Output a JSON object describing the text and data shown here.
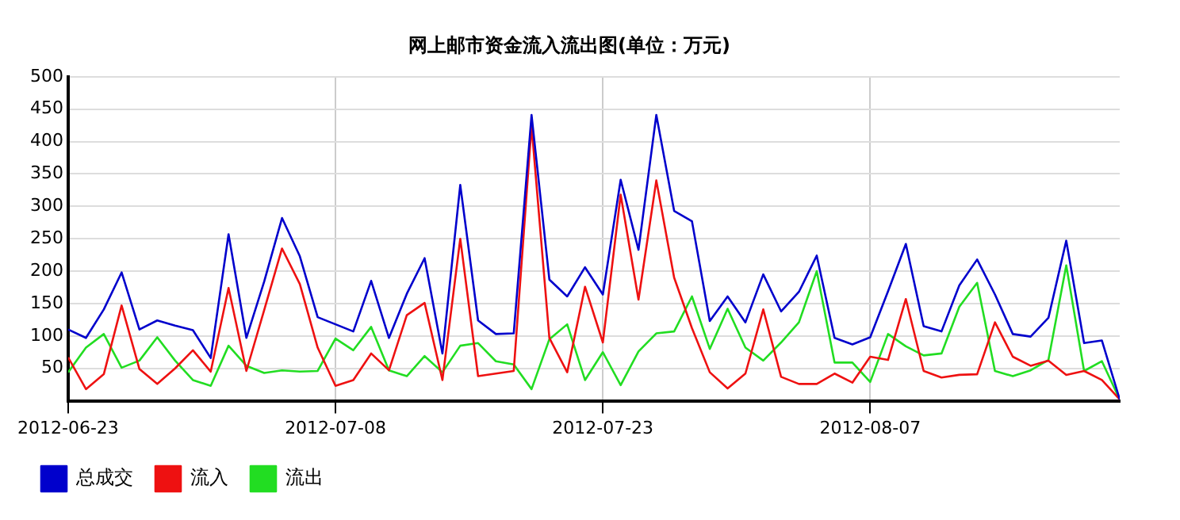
{
  "chart_data": {
    "type": "line",
    "title": "网上邮市资金流入流出图(单位：万元)",
    "x": [
      "2012-06-23",
      "2012-06-24",
      "2012-06-25",
      "2012-06-26",
      "2012-06-27",
      "2012-06-28",
      "2012-06-29",
      "2012-06-30",
      "2012-07-01",
      "2012-07-02",
      "2012-07-03",
      "2012-07-04",
      "2012-07-05",
      "2012-07-06",
      "2012-07-07",
      "2012-07-08",
      "2012-07-09",
      "2012-07-10",
      "2012-07-11",
      "2012-07-12",
      "2012-07-13",
      "2012-07-14",
      "2012-07-15",
      "2012-07-16",
      "2012-07-17",
      "2012-07-18",
      "2012-07-19",
      "2012-07-20",
      "2012-07-21",
      "2012-07-22",
      "2012-07-23",
      "2012-07-24",
      "2012-07-25",
      "2012-07-26",
      "2012-07-27",
      "2012-07-28",
      "2012-07-29",
      "2012-07-30",
      "2012-07-31",
      "2012-08-01",
      "2012-08-02",
      "2012-08-03",
      "2012-08-04",
      "2012-08-05",
      "2012-08-06",
      "2012-08-07",
      "2012-08-08",
      "2012-08-09",
      "2012-08-10",
      "2012-08-11",
      "2012-08-12",
      "2012-08-13",
      "2012-08-14",
      "2012-08-15",
      "2012-08-16",
      "2012-08-17",
      "2012-08-18",
      "2012-08-19",
      "2012-08-20",
      "2012-08-21"
    ],
    "series": [
      {
        "name": "总成交",
        "color": "#0000cc",
        "values": [
          110,
          97,
          141,
          198,
          110,
          124,
          116,
          109,
          66,
          257,
          97,
          184,
          282,
          223,
          129,
          118,
          107,
          185,
          97,
          165,
          220,
          73,
          333,
          124,
          103,
          104,
          441,
          187,
          161,
          206,
          164,
          341,
          233,
          441,
          293,
          277,
          123,
          161,
          121,
          195,
          138,
          168,
          224,
          97,
          87,
          98,
          169,
          242,
          115,
          107,
          178,
          218,
          164,
          103,
          99,
          128,
          247,
          89,
          93,
          2
        ]
      },
      {
        "name": "流入",
        "color": "#ee1111",
        "values": [
          67,
          18,
          41,
          147,
          49,
          26,
          50,
          78,
          45,
          174,
          46,
          140,
          235,
          180,
          82,
          23,
          32,
          73,
          47,
          132,
          151,
          32,
          250,
          38,
          42,
          46,
          424,
          97,
          44,
          176,
          90,
          318,
          156,
          340,
          190,
          112,
          44,
          19,
          42,
          141,
          37,
          26,
          26,
          42,
          28,
          68,
          63,
          157,
          46,
          36,
          40,
          41,
          121,
          68,
          54,
          62,
          40,
          46,
          32,
          2
        ]
      },
      {
        "name": "流出",
        "color": "#22dd22",
        "values": [
          44,
          82,
          103,
          51,
          62,
          98,
          62,
          32,
          23,
          85,
          54,
          43,
          47,
          45,
          46,
          96,
          78,
          114,
          47,
          38,
          69,
          44,
          85,
          89,
          61,
          56,
          18,
          95,
          118,
          32,
          75,
          24,
          76,
          104,
          107,
          161,
          80,
          142,
          82,
          62,
          90,
          121,
          200,
          59,
          59,
          29,
          103,
          84,
          70,
          73,
          145,
          182,
          46,
          38,
          47,
          63,
          209,
          46,
          61,
          2
        ]
      }
    ],
    "xlim": [
      "2012-06-23",
      "2012-08-21"
    ],
    "xticks": [
      "2012-06-23",
      "2012-07-08",
      "2012-07-23",
      "2012-08-07"
    ],
    "ylim": [
      0,
      500
    ],
    "yticks": [
      50,
      100,
      150,
      200,
      250,
      300,
      350,
      400,
      450,
      500
    ],
    "grid": true,
    "legend": "bottom",
    "marker": "none",
    "line_style": "solid"
  }
}
